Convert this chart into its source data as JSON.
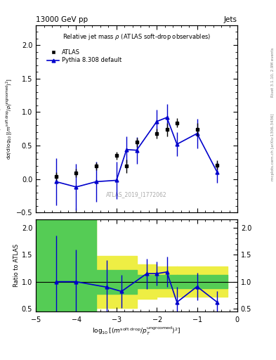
{
  "title_left": "13000 GeV pp",
  "title_right": "Jets",
  "plot_title": "Relative jet mass ρ (ATLAS soft-drop observables)",
  "watermark": "ATLAS_2019_I1772062",
  "right_label_top": "Rivet 3.1.10, 2.9M events",
  "right_label_bottom": "mcplots.cern.ch [arXiv:1306.3436]",
  "ylabel_main": "(1/σ_{resum}) dσ/d log_{10}[(m^{soft drop}/p_T^{ungroomed})^2]",
  "ylabel_ratio": "Ratio to ATLAS",
  "atlas_x": [
    -4.5,
    -4.0,
    -3.5,
    -3.0,
    -2.75,
    -2.5,
    -2.0,
    -1.75,
    -1.5,
    -1.0,
    -0.5
  ],
  "atlas_y": [
    0.04,
    0.09,
    0.19,
    0.35,
    0.19,
    0.55,
    0.68,
    0.74,
    0.84,
    0.74,
    0.21
  ],
  "atlas_yerr": [
    0.06,
    0.06,
    0.06,
    0.06,
    0.1,
    0.07,
    0.07,
    0.1,
    0.07,
    0.1,
    0.07
  ],
  "pythia_x": [
    -4.5,
    -4.0,
    -3.5,
    -3.0,
    -2.75,
    -2.5,
    -2.0,
    -1.75,
    -1.5,
    -1.0,
    -0.5
  ],
  "pythia_y": [
    -0.04,
    -0.12,
    -0.04,
    -0.02,
    0.44,
    0.43,
    0.86,
    0.92,
    0.52,
    0.68,
    0.1
  ],
  "pythia_yerr": [
    0.35,
    0.35,
    0.3,
    0.28,
    0.2,
    0.2,
    0.18,
    0.2,
    0.18,
    0.22,
    0.16
  ],
  "ylim_main": [
    -0.5,
    2.3
  ],
  "ylim_ratio": [
    0.45,
    2.15
  ],
  "xlim": [
    -5.0,
    0.0
  ],
  "ratio_x": [
    -4.5,
    -4.0,
    -3.25,
    -2.875,
    -2.25,
    -2.0,
    -1.75,
    -1.5,
    -1.0,
    -0.5
  ],
  "ratio_y": [
    1.0,
    1.0,
    0.9,
    0.82,
    1.15,
    1.15,
    1.18,
    0.62,
    0.91,
    0.62
  ],
  "ratio_yerr": [
    0.85,
    0.6,
    0.5,
    0.3,
    0.28,
    0.22,
    0.28,
    0.28,
    0.25,
    0.2
  ],
  "band_x_edges": [
    -5.0,
    -4.75,
    -3.5,
    -2.5,
    -2.0,
    -1.5,
    -0.25
  ],
  "green_top": [
    2.15,
    2.15,
    1.22,
    1.12,
    1.12,
    1.12,
    2.15
  ],
  "green_bot": [
    0.45,
    0.45,
    0.78,
    0.88,
    0.88,
    0.88,
    0.45
  ],
  "yellow_top": [
    2.15,
    2.15,
    1.48,
    1.32,
    1.28,
    1.28,
    2.15
  ],
  "yellow_bot": [
    0.45,
    0.45,
    0.52,
    0.68,
    0.72,
    0.72,
    0.45
  ],
  "color_atlas": "#000000",
  "color_pythia": "#0000cc",
  "color_green": "#55cc55",
  "color_yellow": "#eeee44",
  "background_color": "#ffffff"
}
